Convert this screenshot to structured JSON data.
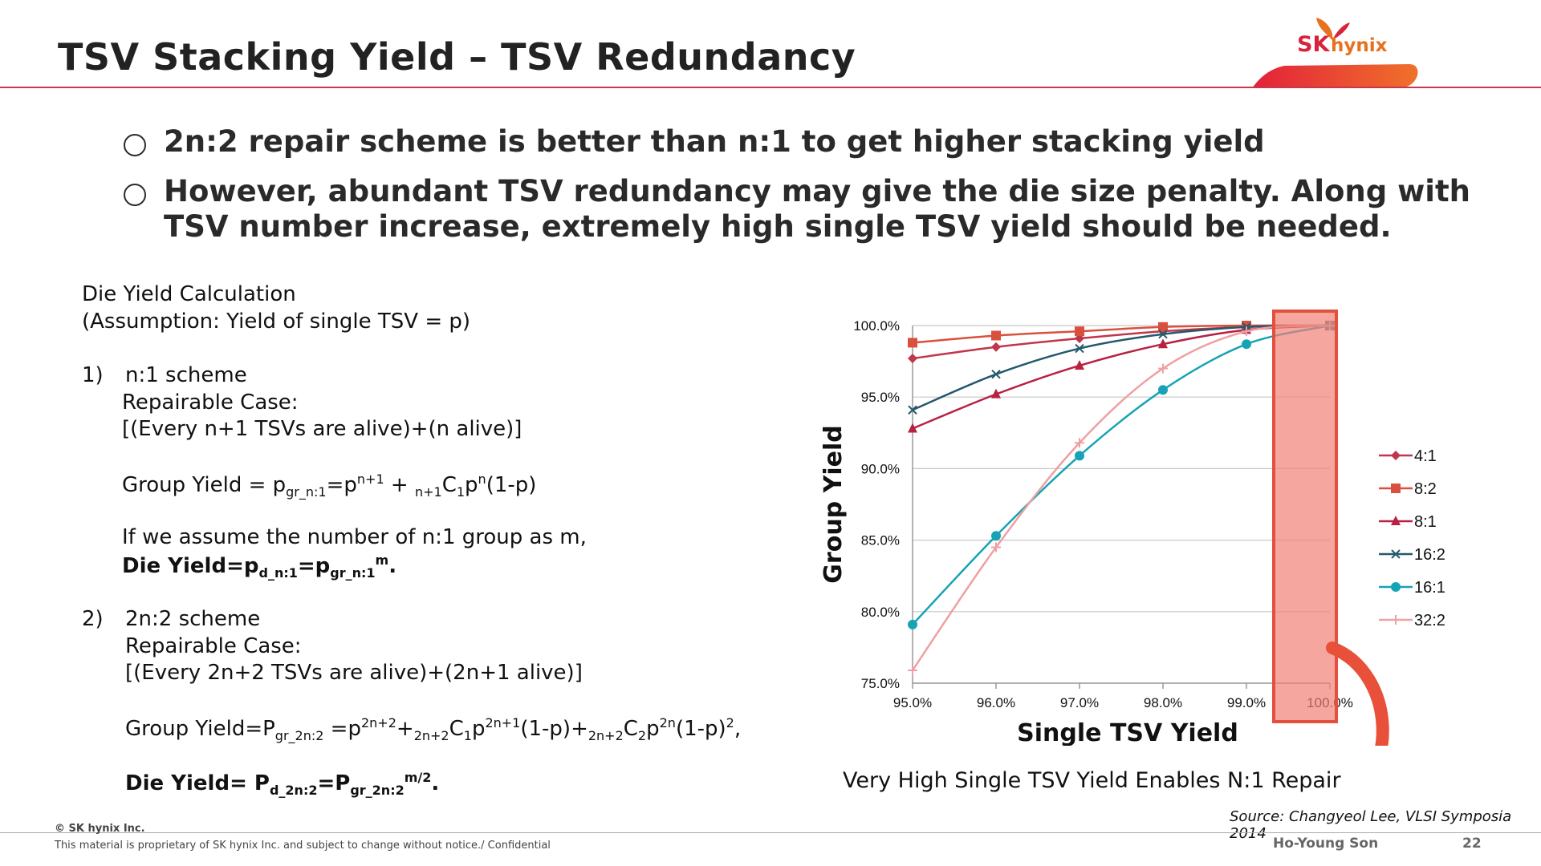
{
  "slide": {
    "title": "TSV Stacking Yield – TSV Redundancy",
    "logo": {
      "sk": "SK",
      "hynix": "hynix"
    },
    "bullets": [
      "2n:2 repair scheme is better than n:1 to get higher stacking yield",
      "However, abundant TSV redundancy may give the die size penalty. Along with TSV number increase, extremely high single TSV yield should be needed."
    ]
  },
  "calc": {
    "heading": "Die Yield Calculation",
    "assumption": "(Assumption: Yield of single TSV = p)",
    "s1_num": "1)",
    "s1_title": "n:1 scheme",
    "s1_case": "Repairable Case:",
    "s1_case_desc": "[(Every n+1 TSVs are alive)+(n alive)]",
    "s1_group_label": "Group Yield = p",
    "s1_m_line": "If we assume the number of n:1 group as m,",
    "s2_num": "2)",
    "s2_title": "2n:2 scheme",
    "s2_case": "Repairable Case:",
    "s2_case_desc": "[(Every 2n+2 TSVs are alive)+(2n+1 alive)]",
    "s2_group_label": "Group Yield=P"
  },
  "chart_data": {
    "type": "line",
    "xlabel": "Single TSV Yield",
    "ylabel": "Group Yield",
    "x": [
      95.0,
      96.0,
      97.0,
      98.0,
      99.0,
      100.0
    ],
    "x_tick_labels": [
      "95.0%",
      "96.0%",
      "97.0%",
      "98.0%",
      "99.0%",
      "100.0%"
    ],
    "ylim": [
      75.0,
      100.0
    ],
    "y_tick_labels": [
      "100.0%",
      "95.0%",
      "90.0%",
      "85.0%",
      "80.0%",
      "75.0%"
    ],
    "y_ticks": [
      100,
      95,
      90,
      85,
      80,
      75
    ],
    "grid": true,
    "legend": "right",
    "series": [
      {
        "name": "4:1",
        "color": "#c0364a",
        "marker": "diamond",
        "values": [
          97.7,
          98.5,
          99.1,
          99.6,
          99.9,
          100.0
        ]
      },
      {
        "name": "8:2",
        "color": "#d9503e",
        "marker": "square",
        "values": [
          98.8,
          99.3,
          99.6,
          99.9,
          100.0,
          100.0
        ]
      },
      {
        "name": "8:1",
        "color": "#b82242",
        "marker": "triangle",
        "values": [
          92.8,
          95.2,
          97.2,
          98.7,
          99.7,
          100.0
        ]
      },
      {
        "name": "16:2",
        "color": "#24596b",
        "marker": "x",
        "values": [
          94.1,
          96.6,
          98.4,
          99.4,
          99.9,
          100.0
        ]
      },
      {
        "name": "16:1",
        "color": "#16a3b5",
        "marker": "circle",
        "values": [
          79.1,
          85.3,
          90.9,
          95.5,
          98.7,
          100.0
        ]
      },
      {
        "name": "32:2",
        "color": "#eea0a3",
        "marker": "plus",
        "values": [
          75.9,
          84.5,
          91.8,
          97.0,
          99.6,
          100.0
        ]
      }
    ],
    "highlight_x": 100.0,
    "highlight_color": "#f08076"
  },
  "caption": "Very High Single TSV Yield Enables N:1 Repair",
  "source": "Source: Changyeol Lee, VLSI Symposia 2014",
  "footer": {
    "copyright": "© SK hynix Inc.",
    "proprietary": "This material is proprietary of SK hynix Inc. and subject to change without notice./ Confidential",
    "author": "Ho-Young Son",
    "page": "22"
  }
}
